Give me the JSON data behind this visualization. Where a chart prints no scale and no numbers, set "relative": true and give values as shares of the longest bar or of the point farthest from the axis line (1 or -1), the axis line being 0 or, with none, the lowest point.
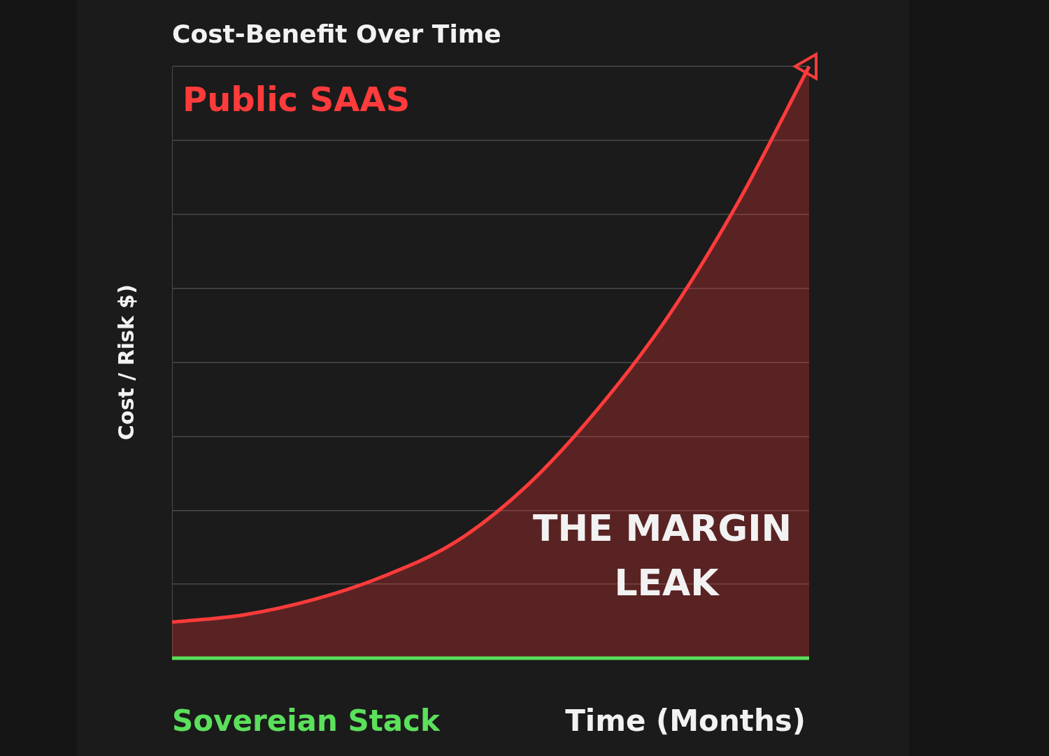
{
  "chart_data": {
    "type": "line",
    "title": "Cost-Benefit Over Time",
    "xlabel": "Time (Months)",
    "ylabel": "Cost / Risk $)",
    "relative": true,
    "grid": "y",
    "legend": false,
    "categories": [
      null,
      null,
      null,
      null,
      null,
      null,
      null,
      null,
      null,
      null
    ],
    "series": [
      {
        "name": "Public SAAS",
        "type": "area",
        "color": "#ff3b3b",
        "values": [
          0.061,
          0.073,
          0.099,
          0.139,
          0.196,
          0.29,
          0.419,
          0.576,
          0.771,
          1
        ]
      },
      {
        "name": "Sovereian Stack",
        "color": "#5be05b",
        "values": [
          0,
          0,
          0,
          0,
          0,
          0,
          0,
          0,
          0,
          0
        ]
      }
    ],
    "annotations": [
      "THE MARGIN LEAK"
    ]
  }
}
